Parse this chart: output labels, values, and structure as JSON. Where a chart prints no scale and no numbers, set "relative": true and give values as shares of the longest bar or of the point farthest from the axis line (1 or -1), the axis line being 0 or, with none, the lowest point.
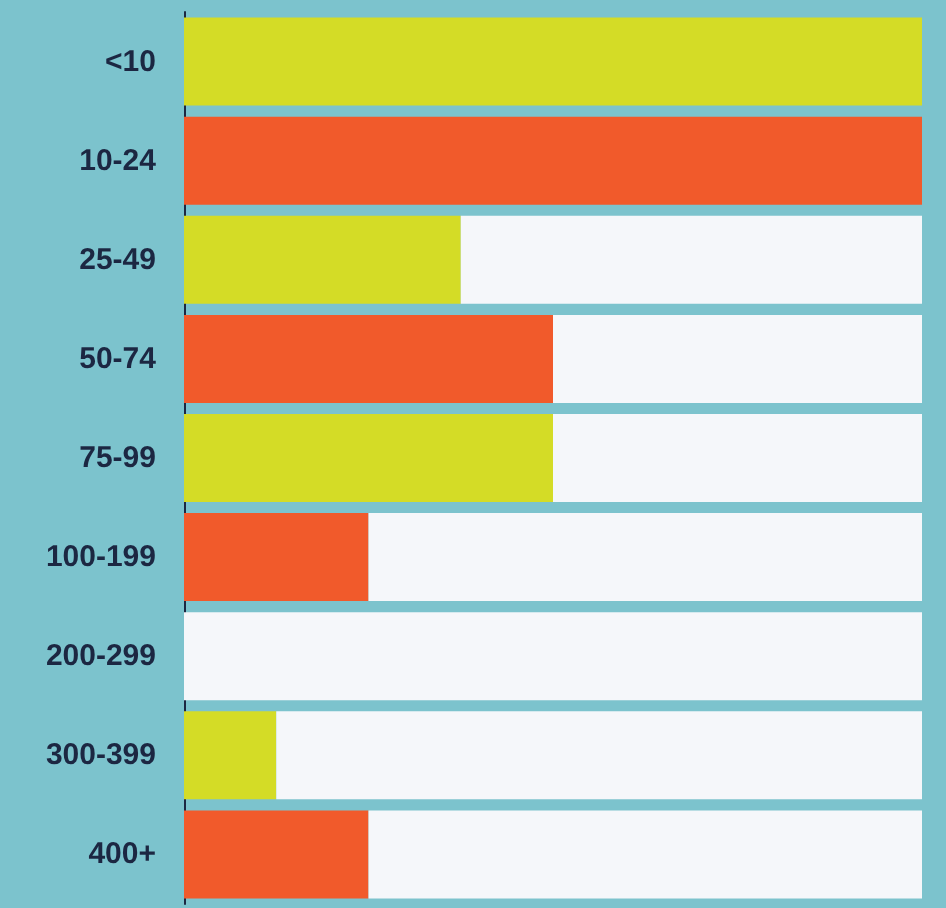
{
  "chart_data": {
    "type": "bar",
    "orientation": "horizontal",
    "stacked": true,
    "relative": true,
    "categories": [
      "<10",
      "10-24",
      "25-49",
      "50-74",
      "75-99",
      "100-199",
      "200-299",
      "300-399",
      "400+"
    ],
    "series": [
      {
        "colors": [
          "#d4dc26",
          "#f15a2b",
          "#d4dc26",
          "#f15a2b",
          "#d4dc26",
          "#f15a2b",
          "#d4dc26",
          "#d4dc26",
          "#f15a2b"
        ],
        "values": [
          1,
          1,
          0.375,
          0.5,
          0.5,
          0.25,
          0,
          0.125,
          0.25
        ]
      },
      {
        "color": "#f5f7fa",
        "values": [
          0,
          0,
          0.625,
          0.5,
          0.5,
          0.75,
          1,
          0.875,
          0.75
        ]
      }
    ]
  }
}
